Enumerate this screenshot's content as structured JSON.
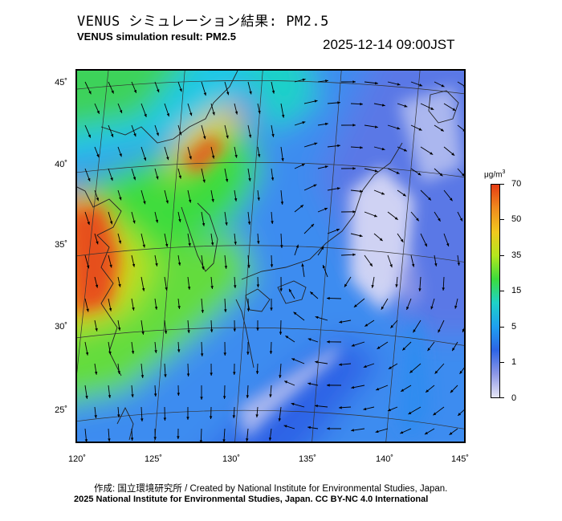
{
  "header": {
    "title_jp": "VENUS シミュレーション結果: PM2.5",
    "title_en": "VENUS simulation result: PM2.5",
    "timestamp": "2025-12-14 09:00JST"
  },
  "map": {
    "lat_labels": [
      "45˚",
      "40˚",
      "35˚",
      "30˚",
      "25˚"
    ],
    "lon_labels": [
      "120˚",
      "125˚",
      "130˚",
      "135˚",
      "140˚",
      "145˚"
    ],
    "field": "PM2.5 concentration with wind vectors"
  },
  "colorbar": {
    "unit_base": "μg/m",
    "unit_exp": "3",
    "labels": [
      "70",
      "50",
      "35",
      "15",
      "5",
      "1",
      "0"
    ],
    "colors": [
      "#e6e6f5",
      "#8c96e6",
      "#2d64e6",
      "#1ea0f0",
      "#1ed2c8",
      "#3cdc3c",
      "#b4e61e",
      "#f0c81e",
      "#f08c1e",
      "#e63c14"
    ]
  },
  "footer": {
    "credit_jp": "作成: 国立環境研究所 / Created by National Institute for Environmental Studies, Japan.",
    "credit_en": "2025 National Institute for Environmental Studies, Japan. CC BY-NC 4.0 International"
  }
}
